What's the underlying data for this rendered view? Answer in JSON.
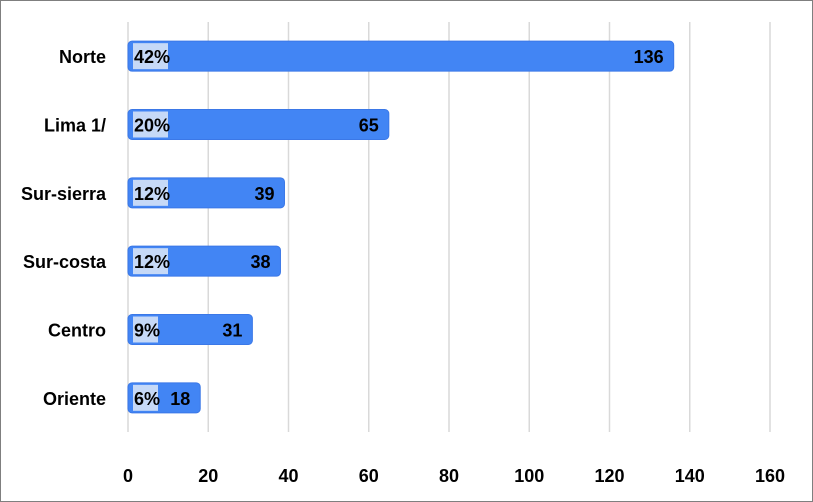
{
  "chart_data": {
    "type": "bar",
    "orientation": "horizontal",
    "categories": [
      "Norte",
      "Lima 1/",
      "Sur-sierra",
      "Sur-costa",
      "Centro",
      "Oriente"
    ],
    "values": [
      136,
      65,
      39,
      38,
      31,
      18
    ],
    "percent_labels": [
      "42%",
      "20%",
      "12%",
      "12%",
      "9%",
      "6%"
    ],
    "xlim": [
      0,
      160
    ],
    "x_ticks": [
      0,
      20,
      40,
      60,
      80,
      100,
      120,
      140,
      160
    ],
    "grid": "vertical",
    "legend": "none",
    "colors": {
      "bar": "#4285f4",
      "bar_border": "#3b78e7",
      "percent_box": "#c6d9f7",
      "gridline": "#d9d9d9"
    }
  }
}
